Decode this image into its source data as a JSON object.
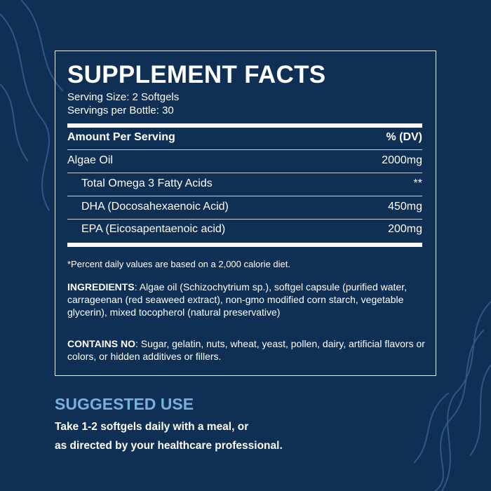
{
  "facts": {
    "title": "SUPPLEMENT FACTS",
    "serving_size": "Serving Size: 2 Softgels",
    "servings_per_bottle": "Servings per Bottle: 30",
    "header": {
      "left": "Amount Per Serving",
      "right": "% (DV)"
    },
    "rows": [
      {
        "name": "Algae Oil",
        "value": "2000mg"
      },
      {
        "name": "Total Omega 3 Fatty Acids",
        "value": "**"
      },
      {
        "name": "DHA (Docosahexaenoic Acid)",
        "value": "450mg"
      },
      {
        "name": "EPA (Eicosapentaenoic acid)",
        "value": "200mg"
      }
    ],
    "footnote": "*Percent daily values are based on a  2,000 calorie diet.",
    "ingredients_label": "INGREDIENTS",
    "ingredients_text": ": Algae oil (Schizochytrium sp.), softgel capsule (purified water, carrageenan (red seaweed extract), non-gmo modified corn starch, vegetable glycerin), mixed tocopherol (natural preservative)",
    "contains_no_label": "CONTAINS NO",
    "contains_no_text": ": Sugar, gelatin, nuts, wheat, yeast, pollen, dairy, artificial flavors or colors, or hidden additives or fillers."
  },
  "suggested_use": {
    "heading": "SUGGESTED USE",
    "line1": "Take 1-2 softgels daily with a meal, or",
    "line2": "as directed by your healthcare professional."
  },
  "colors": {
    "background": "#0f2f55",
    "accent": "#7aaedc",
    "text": "#ffffff"
  }
}
